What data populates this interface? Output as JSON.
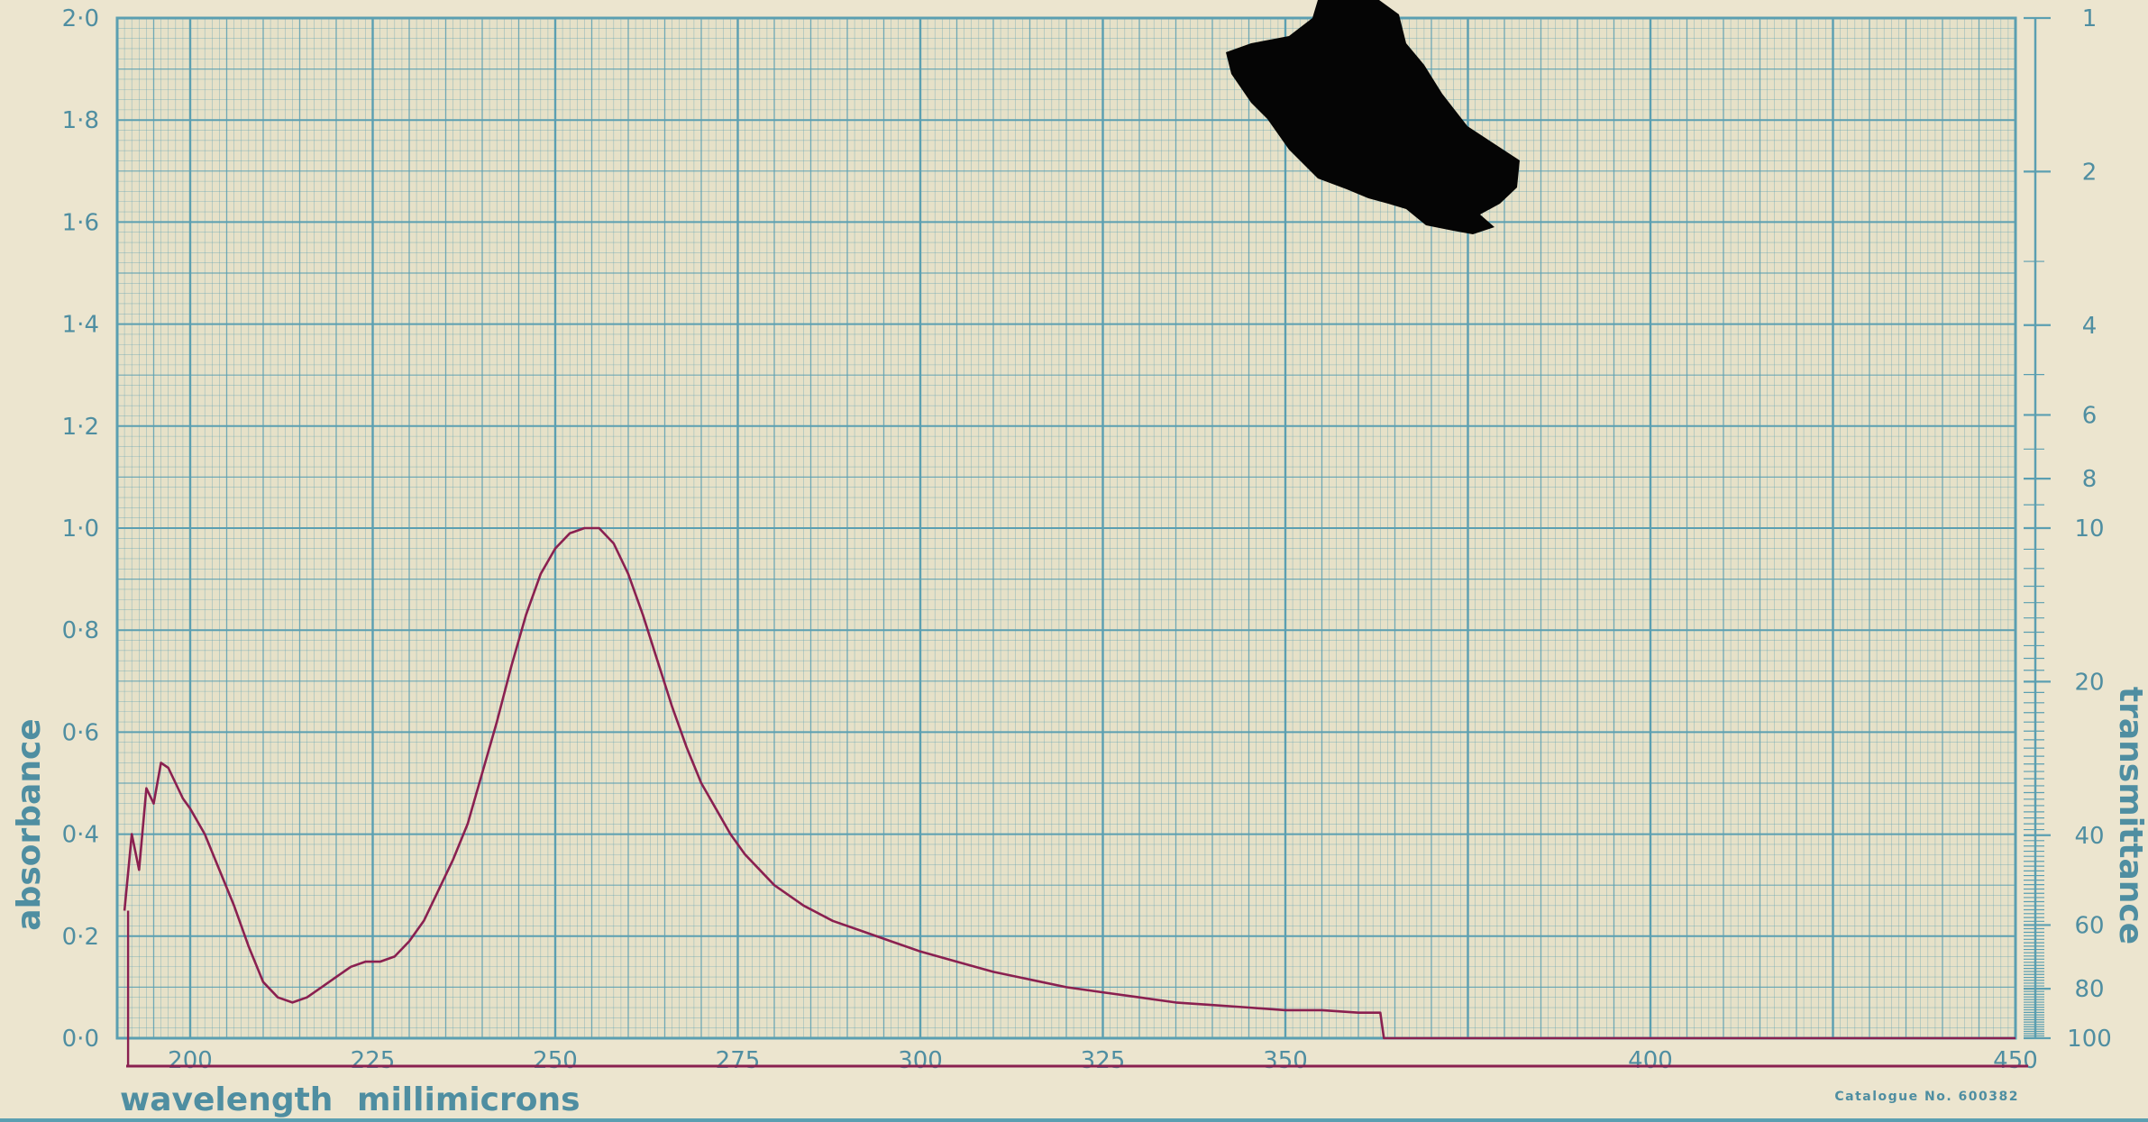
{
  "chart_data": {
    "type": "line",
    "title": "",
    "xlabel": "wavelength millimicrons",
    "ylabel": "absorbance",
    "y2label": "transmittance",
    "xlim": [
      190,
      450
    ],
    "ylim": [
      0.0,
      2.0
    ],
    "grid": true,
    "x_ticks": [
      200,
      225,
      250,
      275,
      300,
      325,
      350,
      400,
      450
    ],
    "x_tick_labels": [
      "200",
      "225",
      "250",
      "275",
      "300",
      "325",
      "350",
      "400",
      "450"
    ],
    "y_ticks": [
      0.0,
      0.2,
      0.4,
      0.6,
      0.8,
      1.0,
      1.2,
      1.4,
      1.6,
      1.8,
      2.0
    ],
    "y_tick_labels": [
      "0·0",
      "0·2",
      "0·4",
      "0·6",
      "0·8",
      "1·0",
      "1·2",
      "1·4",
      "1·6",
      "1·8",
      "2·0"
    ],
    "y2_ticks": [
      1,
      2,
      4,
      6,
      8,
      10,
      20,
      40,
      60,
      80,
      100
    ],
    "y2_tick_labels": [
      "1",
      "2",
      "4",
      "6",
      "8",
      "10",
      "20",
      "40",
      "60",
      "80",
      "100"
    ],
    "series": [
      {
        "x": [
          191,
          192,
          193,
          194,
          195,
          196,
          197,
          198,
          199,
          200,
          202,
          204,
          206,
          208,
          210,
          212,
          214,
          216,
          218,
          220,
          222,
          224,
          226,
          228,
          230,
          232,
          234,
          236,
          238,
          240,
          242,
          244,
          246,
          248,
          250,
          252,
          254,
          256,
          258,
          260,
          262,
          264,
          266,
          268,
          270,
          272,
          274,
          276,
          278,
          280,
          284,
          288,
          292,
          296,
          300,
          305,
          310,
          315,
          320,
          325,
          330,
          335,
          340,
          345,
          350,
          355,
          360,
          363,
          363.5,
          380,
          400,
          420,
          440,
          450
        ],
        "y": [
          0.25,
          0.4,
          0.33,
          0.49,
          0.46,
          0.54,
          0.53,
          0.5,
          0.47,
          0.45,
          0.4,
          0.33,
          0.26,
          0.18,
          0.11,
          0.08,
          0.07,
          0.08,
          0.1,
          0.12,
          0.14,
          0.15,
          0.15,
          0.16,
          0.19,
          0.23,
          0.29,
          0.35,
          0.42,
          0.52,
          0.62,
          0.73,
          0.83,
          0.91,
          0.96,
          0.99,
          1.0,
          1.0,
          0.97,
          0.91,
          0.83,
          0.74,
          0.65,
          0.57,
          0.5,
          0.45,
          0.4,
          0.36,
          0.33,
          0.3,
          0.26,
          0.23,
          0.21,
          0.19,
          0.17,
          0.15,
          0.13,
          0.115,
          0.1,
          0.09,
          0.08,
          0.07,
          0.065,
          0.06,
          0.055,
          0.055,
          0.05,
          0.05,
          0.0,
          0.0,
          0.0,
          0.0,
          0.0,
          0.0
        ]
      }
    ]
  },
  "footer": {
    "catalogue": "Catalogue No. 600382"
  },
  "colors": {
    "paper": "#ece5cf",
    "grid": "#5b9fb1",
    "labels": "#4f8ea1",
    "trace": "#8a2050",
    "blot": "#050505"
  }
}
